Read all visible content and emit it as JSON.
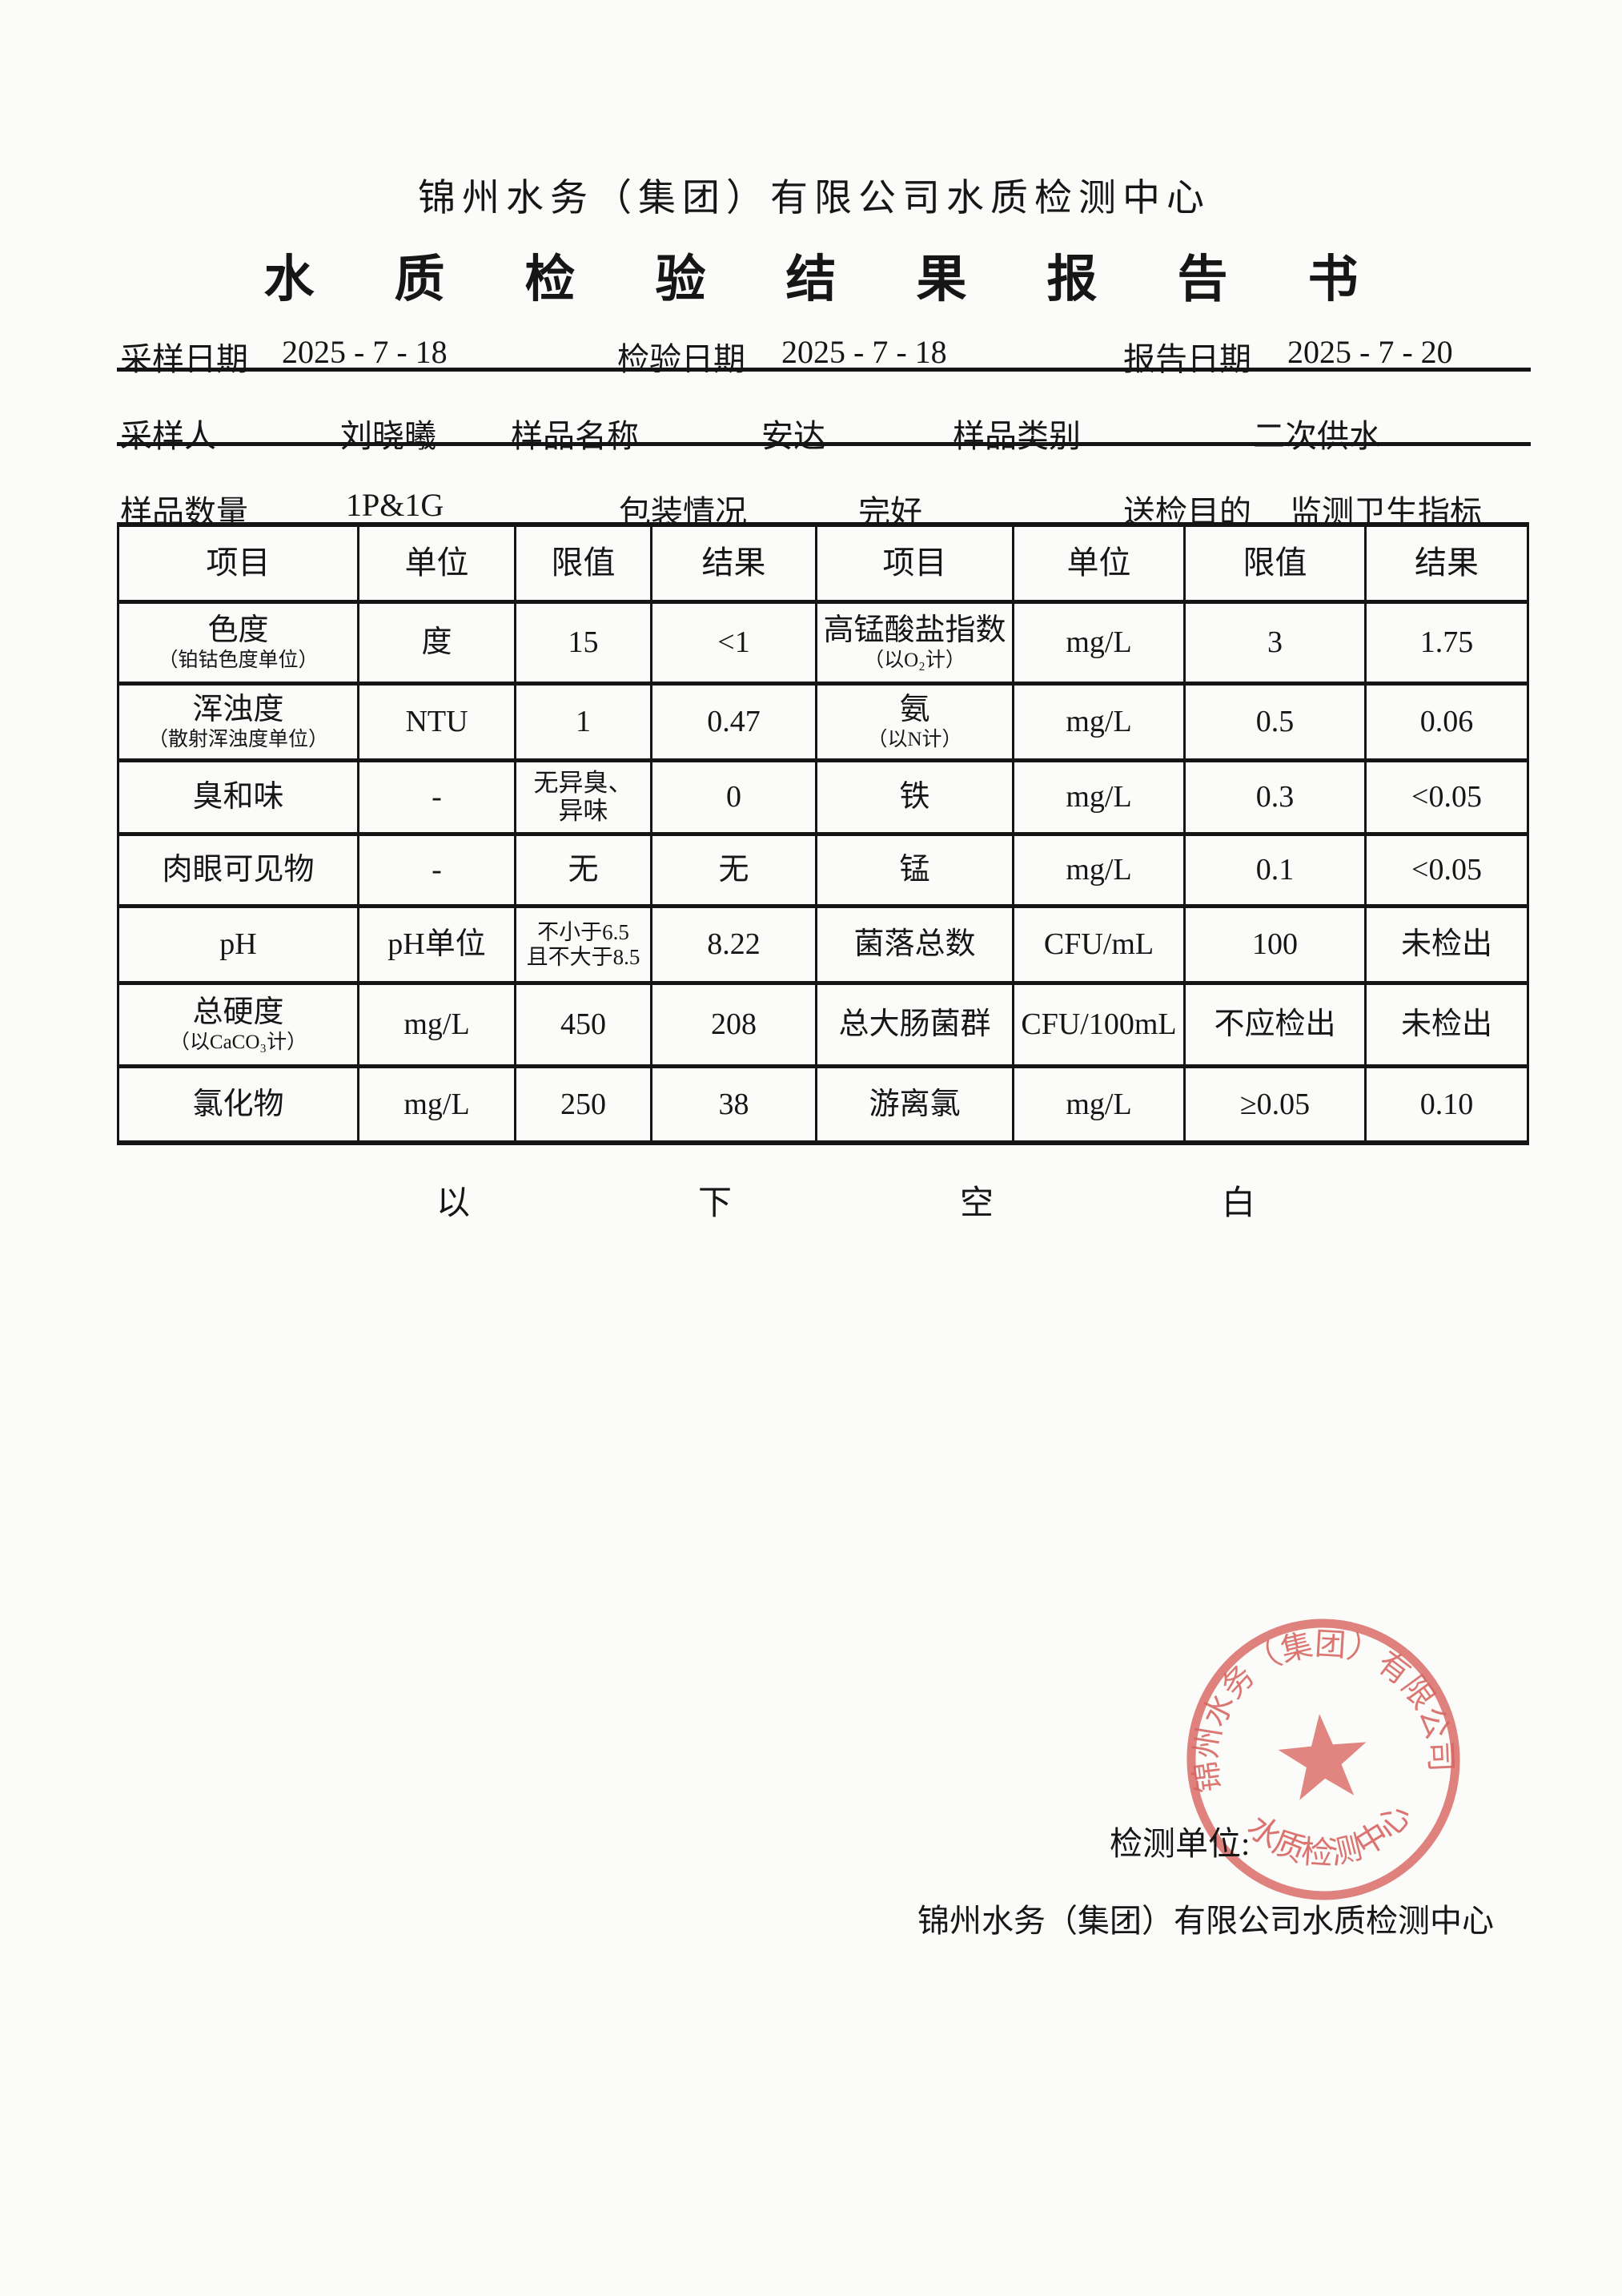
{
  "colors": {
    "ink": "#161616",
    "stamp_red": "#db5c58",
    "paper": "#fbfbf9"
  },
  "header": {
    "org_title": "锦州水务（集团）有限公司水质检测中心",
    "report_title": "水质检验结果报告书"
  },
  "info_rows": {
    "row1": [
      {
        "label": "采样日期",
        "value": "2025 - 7 - 18"
      },
      {
        "label": "检验日期",
        "value": "2025 - 7 - 18"
      },
      {
        "label": "报告日期",
        "value": "2025 - 7 - 20"
      }
    ],
    "row2": [
      {
        "label": "采样人",
        "value": "刘晓曦"
      },
      {
        "label": "样品名称",
        "value": "安达"
      },
      {
        "label": "样品类别",
        "value": "二次供水"
      }
    ],
    "row3": [
      {
        "label": "样品数量",
        "value": "1P&1G"
      },
      {
        "label": "包装情况",
        "value": "完好"
      },
      {
        "label": "送检目的",
        "value": "监测卫生指标"
      }
    ]
  },
  "table": {
    "headers": [
      "项目",
      "单位",
      "限值",
      "结果",
      "项目",
      "单位",
      "限值",
      "结果"
    ],
    "rows": [
      {
        "cells": [
          {
            "main": "色度",
            "sub": "（铂钴色度单位）"
          },
          {
            "main": "度"
          },
          {
            "main": "15"
          },
          {
            "main": "<1"
          },
          {
            "main": "高锰酸盐指数",
            "sub": "（以O₂计）"
          },
          {
            "main": "mg/L"
          },
          {
            "main": "3"
          },
          {
            "main": "1.75"
          }
        ]
      },
      {
        "cells": [
          {
            "main": "浑浊度",
            "sub": "（散射浑浊度单位）"
          },
          {
            "main": "NTU"
          },
          {
            "main": "1"
          },
          {
            "main": "0.47"
          },
          {
            "main": "氨",
            "sub": "（以N计）"
          },
          {
            "main": "mg/L"
          },
          {
            "main": "0.5"
          },
          {
            "main": "0.06"
          }
        ]
      },
      {
        "cells": [
          {
            "main": "臭和味"
          },
          {
            "main": "-"
          },
          {
            "main": "无异臭、",
            "sub": "异味",
            "style": "md"
          },
          {
            "main": "0"
          },
          {
            "main": "铁"
          },
          {
            "main": "mg/L"
          },
          {
            "main": "0.3"
          },
          {
            "main": "<0.05"
          }
        ]
      },
      {
        "cells": [
          {
            "main": "肉眼可见物"
          },
          {
            "main": "-"
          },
          {
            "main": "无"
          },
          {
            "main": "无"
          },
          {
            "main": "锰"
          },
          {
            "main": "mg/L"
          },
          {
            "main": "0.1"
          },
          {
            "main": "<0.05"
          }
        ]
      },
      {
        "cells": [
          {
            "main": "pH"
          },
          {
            "main": "pH单位"
          },
          {
            "main": "不小于6.5",
            "sub": "且不大于8.5",
            "style": "sm"
          },
          {
            "main": "8.22"
          },
          {
            "main": "菌落总数"
          },
          {
            "main": "CFU/mL"
          },
          {
            "main": "100"
          },
          {
            "main": "未检出"
          }
        ]
      },
      {
        "cells": [
          {
            "main": "总硬度",
            "sub": "（以CaCO₃计）"
          },
          {
            "main": "mg/L"
          },
          {
            "main": "450"
          },
          {
            "main": "208"
          },
          {
            "main": "总大肠菌群"
          },
          {
            "main": "CFU/100mL"
          },
          {
            "main": "不应检出"
          },
          {
            "main": "未检出"
          }
        ]
      },
      {
        "cells": [
          {
            "main": "氯化物"
          },
          {
            "main": "mg/L"
          },
          {
            "main": "250"
          },
          {
            "main": "38"
          },
          {
            "main": "游离氯"
          },
          {
            "main": "mg/L"
          },
          {
            "main": "≥0.05"
          },
          {
            "main": "0.10"
          }
        ]
      }
    ]
  },
  "notes": {
    "blank_below": "以下空白"
  },
  "footer": {
    "unit_label": "检测单位:",
    "unit_name": "锦州水务（集团）有限公司水质检测中心"
  },
  "stamp": {
    "arc_top": "锦州水务（集团）有限公司",
    "arc_bottom": "水质检测中心"
  }
}
